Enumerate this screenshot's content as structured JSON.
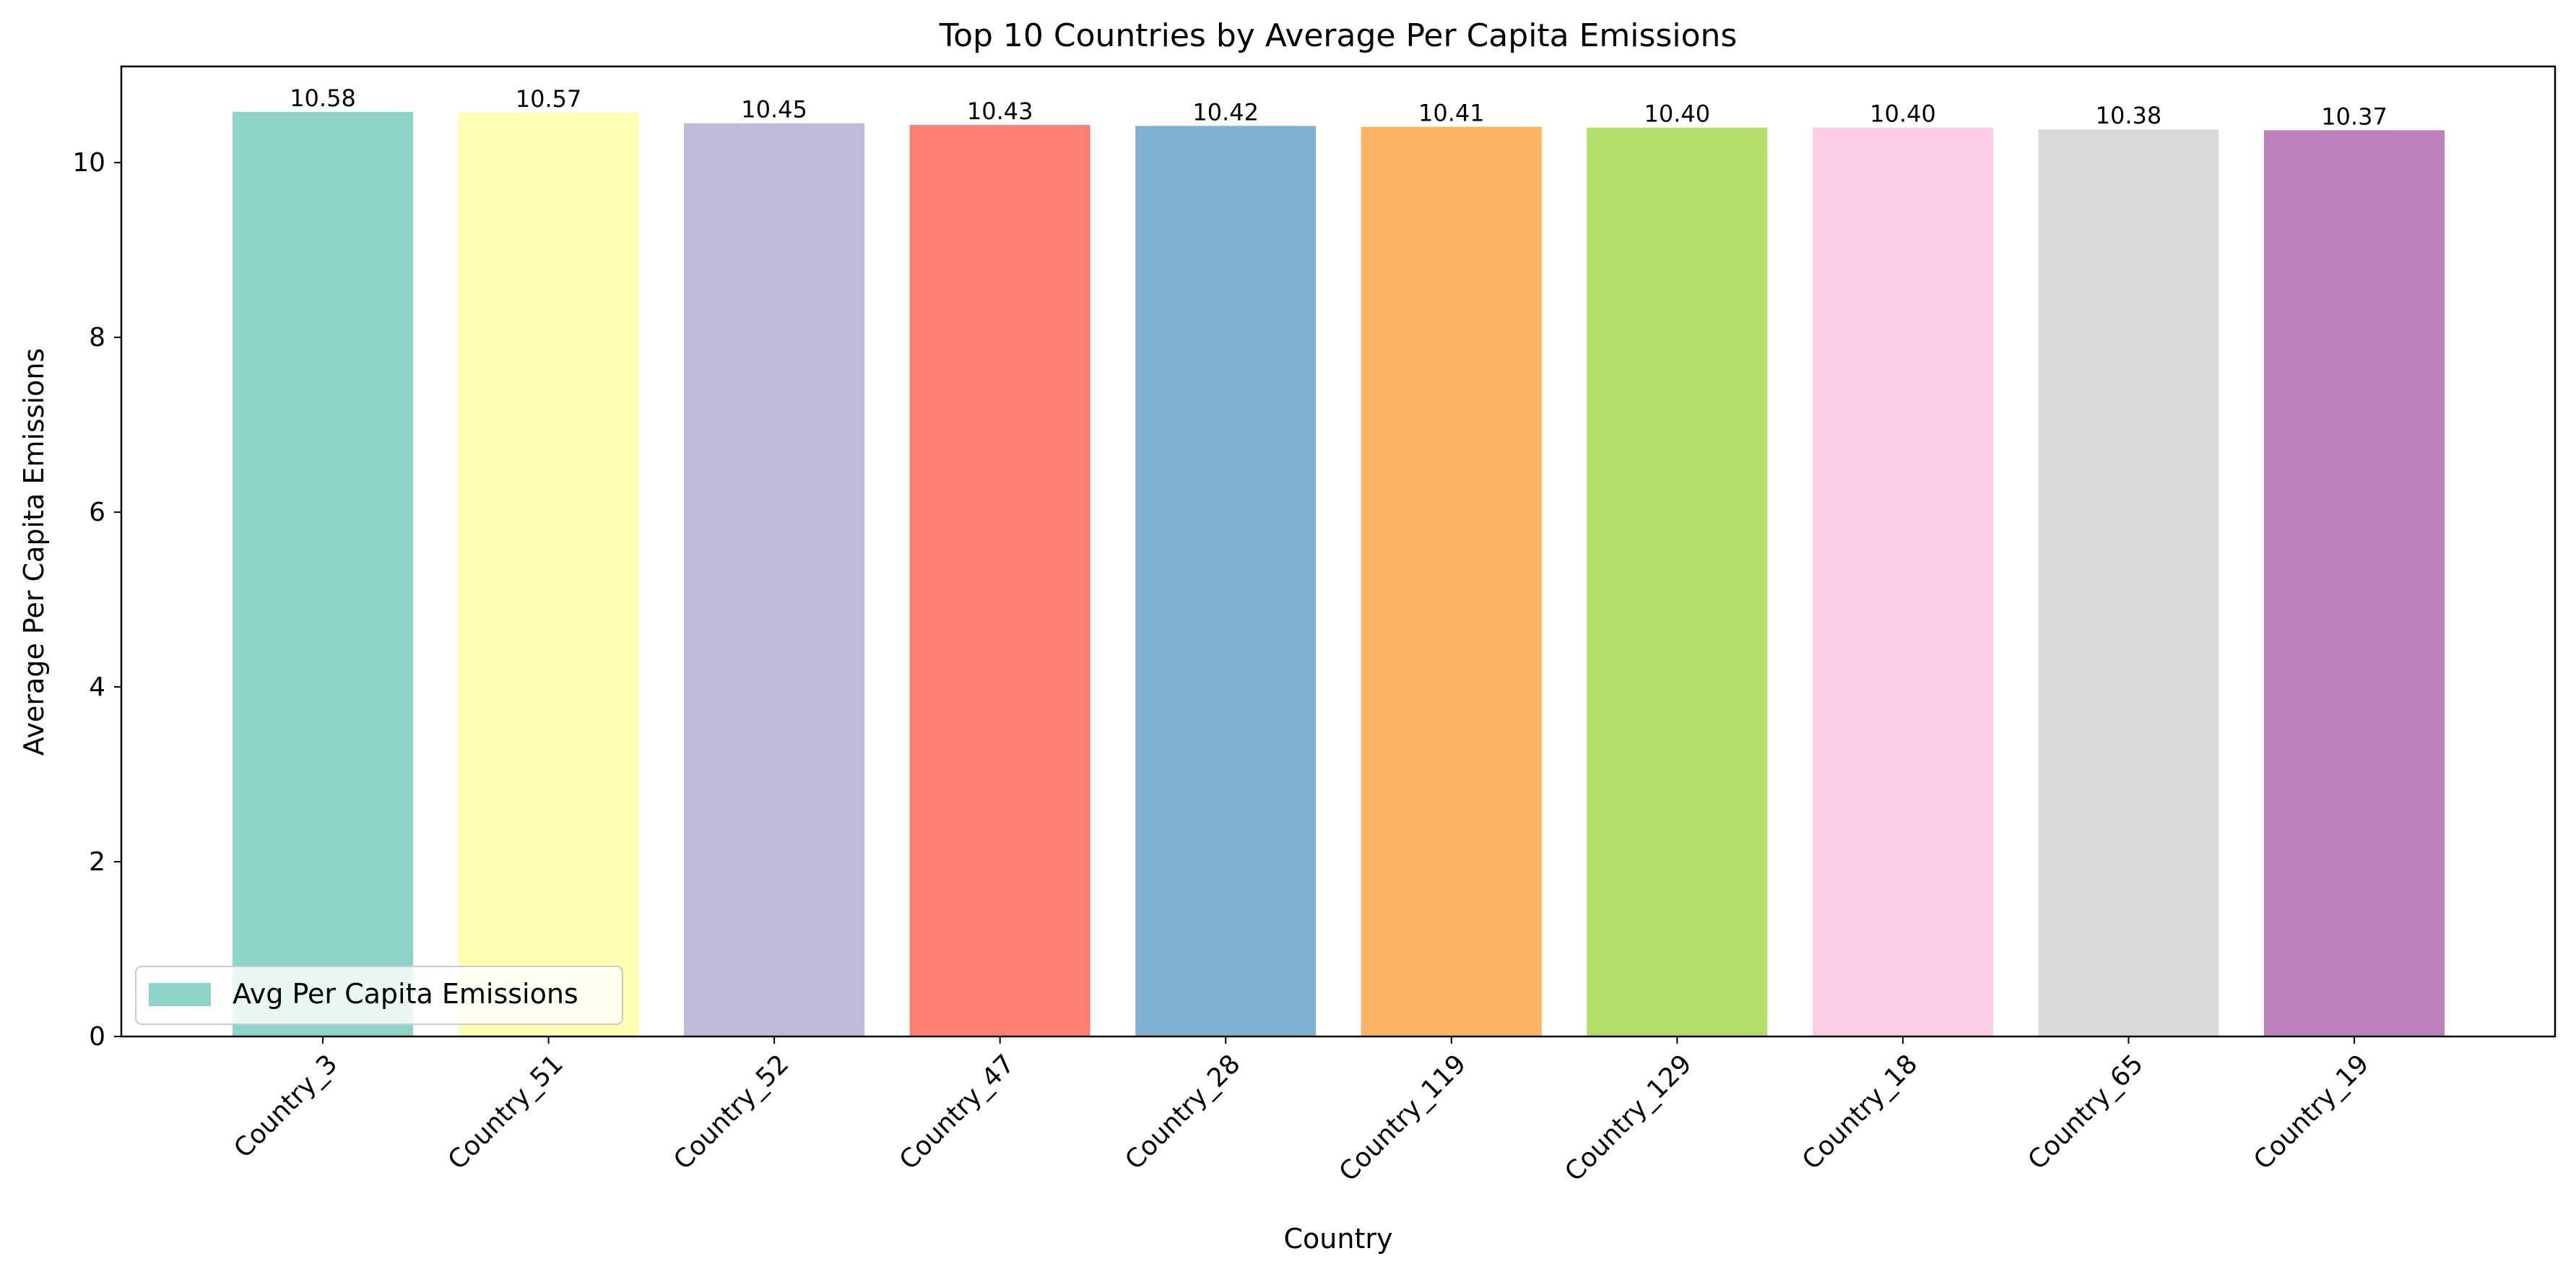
{
  "chart_data": {
    "type": "bar",
    "title": "Top 10 Countries by Average Per Capita Emissions",
    "xlabel": "Country",
    "ylabel": "Average Per Capita Emissions",
    "categories": [
      "Country_3",
      "Country_51",
      "Country_52",
      "Country_47",
      "Country_28",
      "Country_119",
      "Country_129",
      "Country_18",
      "Country_65",
      "Country_19"
    ],
    "series": [
      {
        "name": "Avg Per Capita Emissions",
        "values": [
          10.58,
          10.57,
          10.45,
          10.43,
          10.42,
          10.41,
          10.4,
          10.4,
          10.38,
          10.37
        ],
        "labels": [
          "10.58",
          "10.57",
          "10.45",
          "10.43",
          "10.42",
          "10.41",
          "10.40",
          "10.40",
          "10.38",
          "10.37"
        ],
        "colors": [
          "#8dd3c7",
          "#ffffb3",
          "#bebada",
          "#fb8072",
          "#80b1d3",
          "#fdb462",
          "#b3de69",
          "#fccde5",
          "#d9d9d9",
          "#bc80bd"
        ]
      }
    ],
    "ylim": [
      0,
      11.1
    ],
    "yticks": [
      0,
      2,
      4,
      6,
      8,
      10
    ],
    "grid": false,
    "legend_position": "lower-left"
  }
}
